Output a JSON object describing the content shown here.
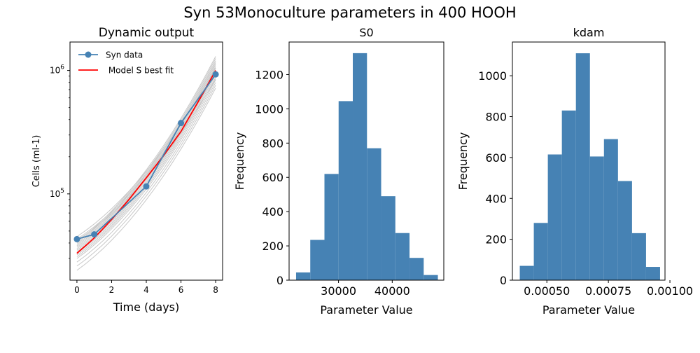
{
  "figure": {
    "title": "Syn 53Monoculture parameters in 400 HOOH"
  },
  "chart_data": [
    {
      "type": "line",
      "title": "Dynamic output",
      "xlabel": "Time (days)",
      "ylabel": "Cells (ml-1)",
      "yscale": "log",
      "xlim": [
        -0.4,
        8.4
      ],
      "ylim": [
        20000,
        1700000
      ],
      "x_ticks": [
        0,
        2,
        4,
        6,
        8
      ],
      "y_ticks": [
        {
          "value": 100000,
          "base": "10",
          "exp": "5"
        },
        {
          "value": 1000000,
          "base": "10",
          "exp": "6"
        }
      ],
      "legend": {
        "placement": "top-left",
        "entries": [
          "Syn data",
          " Model S best fit"
        ]
      },
      "series": [
        {
          "name": "Syn data",
          "color": "#4682b4",
          "marker": "o",
          "x": [
            0,
            1,
            4,
            6,
            8
          ],
          "y": [
            43000,
            47000,
            115000,
            375000,
            930000
          ]
        },
        {
          "name": " Model S best fit",
          "color": "#ff0000",
          "x": [
            0,
            1,
            2,
            3,
            4,
            5,
            6,
            7,
            8
          ],
          "y": [
            33000,
            44000,
            62000,
            90000,
            135000,
            205000,
            320000,
            560000,
            1000000
          ]
        }
      ],
      "ensemble": {
        "color": "#c8c8c8",
        "start": [
          24000,
          26000,
          28000,
          30000,
          31000,
          32000,
          33000,
          34000,
          35000,
          36000,
          37000,
          38000,
          39000,
          40000,
          41000,
          42000,
          43000,
          45000
        ],
        "end": [
          720000,
          760000,
          800000,
          840000,
          880000,
          920000,
          960000,
          1000000,
          1040000,
          1080000,
          1120000,
          1160000,
          1200000,
          1250000,
          1300000,
          850000,
          950000,
          1050000
        ]
      }
    },
    {
      "type": "bar",
      "title": "S0",
      "xlabel": "Parameter Value",
      "ylabel": "Frequency",
      "color": "#4682b4",
      "xlim": [
        20800,
        49600
      ],
      "ylim": [
        0,
        1390
      ],
      "x_ticks": [
        {
          "value": 30000,
          "label": "30000"
        },
        {
          "value": 40000,
          "label": "40000"
        }
      ],
      "y_ticks": [
        0,
        200,
        400,
        600,
        800,
        1000,
        1200
      ],
      "bin_edges": [
        22100,
        24740,
        27380,
        30020,
        32660,
        35300,
        37940,
        40580,
        43220,
        45860,
        48500
      ],
      "values": [
        45,
        235,
        620,
        1045,
        1325,
        770,
        490,
        275,
        130,
        30
      ]
    },
    {
      "type": "bar",
      "title": "kdam",
      "xlabel": "Parameter Value",
      "ylabel": "Frequency",
      "color": "#4682b4",
      "xlim": [
        0.00036,
        0.00098
      ],
      "ylim": [
        0,
        1165
      ],
      "x_ticks": [
        {
          "value": 0.0005,
          "label": "0.00050"
        },
        {
          "value": 0.00075,
          "label": "0.00075"
        },
        {
          "value": 0.001,
          "label": "0.00100"
        }
      ],
      "y_ticks": [
        0,
        200,
        400,
        600,
        800,
        1000
      ],
      "bin_edges": [
        0.00039,
        0.000447,
        0.000504,
        0.000561,
        0.000618,
        0.000675,
        0.000732,
        0.000789,
        0.000846,
        0.000903,
        0.00096
      ],
      "values": [
        70,
        280,
        615,
        830,
        1110,
        605,
        690,
        485,
        230,
        65
      ]
    }
  ]
}
